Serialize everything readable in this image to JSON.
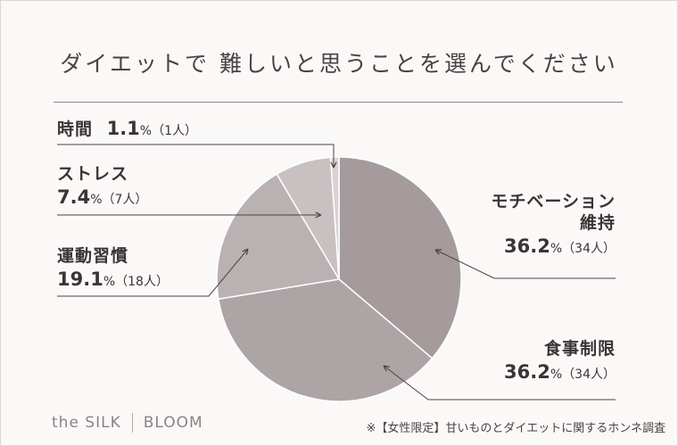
{
  "title": "ダイエットで 難しいと思うことを選んでください",
  "chart_data": {
    "type": "pie",
    "title": "ダイエットで 難しいと思うことを選んでください",
    "unit": "%",
    "slices": [
      {
        "label_line1": "モチベーション",
        "label_line2": "維持",
        "percent": 36.2,
        "percent_text": "36.2",
        "count_text": "（34人）",
        "color": "#a69b9c"
      },
      {
        "label_line1": "食事制限",
        "label_line2": "",
        "percent": 36.2,
        "percent_text": "36.2",
        "count_text": "（34人）",
        "color": "#ada4a5"
      },
      {
        "label_line1": "運動習慣",
        "label_line2": "",
        "percent": 19.1,
        "percent_text": "19.1",
        "count_text": "（18人）",
        "color": "#b9b1b2"
      },
      {
        "label_line1": "ストレス",
        "label_line2": "",
        "percent": 7.4,
        "percent_text": "7.4",
        "count_text": "（7人）",
        "color": "#c9c1c1"
      },
      {
        "label_line1": "時間",
        "label_line2": "",
        "percent": 1.1,
        "percent_text": "1.1",
        "count_text": "（1人）",
        "color": "#d8d2d2"
      }
    ]
  },
  "brand": {
    "left": "the SILK",
    "right": "BLOOM"
  },
  "source": "※【女性限定】甘いものとダイエットに関するホンネ調査"
}
